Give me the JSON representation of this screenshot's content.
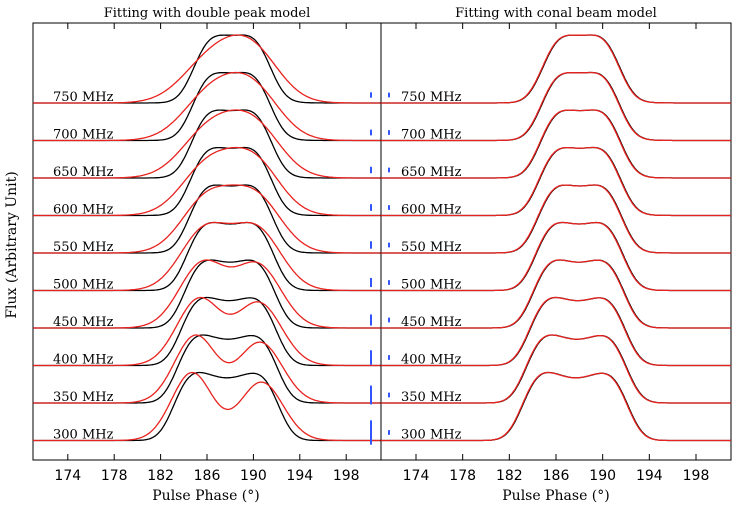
{
  "figure": {
    "ylabel": "Flux (Arbitrary Unit)",
    "xlabel": "Pulse Phase (°)"
  },
  "colors": {
    "observed": "#000000",
    "model": "#e8221e",
    "error_bar": "#3355ff",
    "axes": "#000000"
  },
  "chart_data": [
    {
      "type": "line",
      "title": "Fitting with double peak model",
      "xlabel": "Pulse Phase (°)",
      "ylabel": "Flux (Arbitrary Unit)",
      "xlim": [
        171,
        201
      ],
      "xticks": [
        174,
        178,
        182,
        186,
        190,
        194,
        198
      ],
      "xtick_labels": [
        "174",
        "178",
        "182",
        "186",
        "190",
        "194",
        "198"
      ],
      "grid": false,
      "profile_peak_height": 0.53,
      "frequencies": [
        "750 MHz",
        "700 MHz",
        "650 MHz",
        "600 MHz",
        "550 MHz",
        "500 MHz",
        "450 MHz",
        "400 MHz",
        "350 MHz",
        "300 MHz"
      ],
      "series": [
        {
          "name": "750 MHz",
          "model": "double-peak",
          "peak1": {
            "center": 186.4,
            "amp": 0.86,
            "width": 2.5
          },
          "peak2": {
            "center": 190.0,
            "amp": 0.95,
            "width": 2.3
          },
          "error_bar": 0.16
        },
        {
          "name": "700 MHz",
          "model": "double-peak",
          "peak1": {
            "center": 186.3,
            "amp": 0.87,
            "width": 2.4
          },
          "peak2": {
            "center": 190.0,
            "amp": 0.94,
            "width": 2.3
          },
          "error_bar": 0.17
        },
        {
          "name": "650 MHz",
          "model": "double-peak",
          "peak1": {
            "center": 186.2,
            "amp": 0.88,
            "width": 2.4
          },
          "peak2": {
            "center": 190.1,
            "amp": 0.93,
            "width": 2.3
          },
          "error_bar": 0.19
        },
        {
          "name": "600 MHz",
          "model": "double-peak",
          "peak1": {
            "center": 186.1,
            "amp": 0.89,
            "width": 2.3
          },
          "peak2": {
            "center": 190.1,
            "amp": 0.93,
            "width": 2.2
          },
          "error_bar": 0.2
        },
        {
          "name": "550 MHz",
          "model": "double-peak",
          "peak1": {
            "center": 186.0,
            "amp": 0.9,
            "width": 2.2
          },
          "peak2": {
            "center": 190.2,
            "amp": 0.92,
            "width": 2.2
          },
          "error_bar": 0.22
        },
        {
          "name": "500 MHz",
          "model": "double-peak",
          "peak1": {
            "center": 185.8,
            "amp": 0.92,
            "width": 2.1
          },
          "peak2": {
            "center": 190.3,
            "amp": 0.92,
            "width": 2.1
          },
          "error_bar": 0.27
        },
        {
          "name": "450 MHz",
          "model": "double-peak",
          "peak1": {
            "center": 185.6,
            "amp": 0.94,
            "width": 2.0
          },
          "peak2": {
            "center": 190.4,
            "amp": 0.91,
            "width": 2.0
          },
          "error_bar": 0.33
        },
        {
          "name": "400 MHz",
          "model": "double-peak",
          "peak1": {
            "center": 185.3,
            "amp": 0.96,
            "width": 1.9
          },
          "peak2": {
            "center": 190.5,
            "amp": 0.9,
            "width": 1.95
          },
          "error_bar": 0.43
        },
        {
          "name": "350 MHz",
          "model": "double-peak",
          "peak1": {
            "center": 185.0,
            "amp": 0.98,
            "width": 1.8
          },
          "peak2": {
            "center": 190.6,
            "amp": 0.88,
            "width": 1.9
          },
          "error_bar": 0.56
        },
        {
          "name": "300 MHz",
          "model": "double-peak",
          "peak1": {
            "center": 184.7,
            "amp": 1.0,
            "width": 1.75
          },
          "peak2": {
            "center": 190.7,
            "amp": 0.86,
            "width": 1.85
          },
          "error_bar": 0.72
        }
      ]
    },
    {
      "type": "line",
      "title": "Fitting with conal beam model",
      "xlabel": "Pulse Phase (°)",
      "ylabel": "Flux (Arbitrary Unit)",
      "xlim": [
        171,
        201
      ],
      "xticks": [
        174,
        178,
        182,
        186,
        190,
        194,
        198
      ],
      "xtick_labels": [
        "174",
        "178",
        "182",
        "186",
        "190",
        "194",
        "198"
      ],
      "grid": false,
      "profile_peak_height": 0.53,
      "frequencies": [
        "750 MHz",
        "700 MHz",
        "650 MHz",
        "600 MHz",
        "550 MHz",
        "500 MHz",
        "450 MHz",
        "400 MHz",
        "350 MHz",
        "300 MHz"
      ],
      "series": [
        {
          "name": "750 MHz",
          "model": "conal-beam",
          "peak1": {
            "center": 186.4,
            "amp": 0.86,
            "width": 2.5
          },
          "peak2": {
            "center": 190.0,
            "amp": 0.95,
            "width": 2.3
          },
          "error_bar": 0.14
        },
        {
          "name": "700 MHz",
          "model": "conal-beam",
          "peak1": {
            "center": 186.3,
            "amp": 0.87,
            "width": 2.4
          },
          "peak2": {
            "center": 190.0,
            "amp": 0.94,
            "width": 2.3
          },
          "error_bar": 0.14
        },
        {
          "name": "650 MHz",
          "model": "conal-beam",
          "peak1": {
            "center": 186.2,
            "amp": 0.88,
            "width": 2.4
          },
          "peak2": {
            "center": 190.1,
            "amp": 0.93,
            "width": 2.3
          },
          "error_bar": 0.14
        },
        {
          "name": "600 MHz",
          "model": "conal-beam",
          "peak1": {
            "center": 186.1,
            "amp": 0.89,
            "width": 2.3
          },
          "peak2": {
            "center": 190.1,
            "amp": 0.93,
            "width": 2.2
          },
          "error_bar": 0.14
        },
        {
          "name": "550 MHz",
          "model": "conal-beam",
          "peak1": {
            "center": 186.0,
            "amp": 0.9,
            "width": 2.2
          },
          "peak2": {
            "center": 190.2,
            "amp": 0.92,
            "width": 2.2
          },
          "error_bar": 0.14
        },
        {
          "name": "500 MHz",
          "model": "conal-beam",
          "peak1": {
            "center": 185.8,
            "amp": 0.92,
            "width": 2.1
          },
          "peak2": {
            "center": 190.3,
            "amp": 0.92,
            "width": 2.1
          },
          "error_bar": 0.14
        },
        {
          "name": "450 MHz",
          "model": "conal-beam",
          "peak1": {
            "center": 185.6,
            "amp": 0.94,
            "width": 2.0
          },
          "peak2": {
            "center": 190.4,
            "amp": 0.91,
            "width": 2.0
          },
          "error_bar": 0.14
        },
        {
          "name": "400 MHz",
          "model": "conal-beam",
          "peak1": {
            "center": 185.3,
            "amp": 0.96,
            "width": 1.9
          },
          "peak2": {
            "center": 190.5,
            "amp": 0.9,
            "width": 1.95
          },
          "error_bar": 0.14
        },
        {
          "name": "350 MHz",
          "model": "conal-beam",
          "peak1": {
            "center": 185.0,
            "amp": 0.98,
            "width": 1.8
          },
          "peak2": {
            "center": 190.6,
            "amp": 0.88,
            "width": 1.9
          },
          "error_bar": 0.14
        },
        {
          "name": "300 MHz",
          "model": "conal-beam",
          "peak1": {
            "center": 184.7,
            "amp": 1.0,
            "width": 1.75
          },
          "peak2": {
            "center": 190.7,
            "amp": 0.86,
            "width": 1.85
          },
          "error_bar": 0.14
        }
      ]
    }
  ]
}
